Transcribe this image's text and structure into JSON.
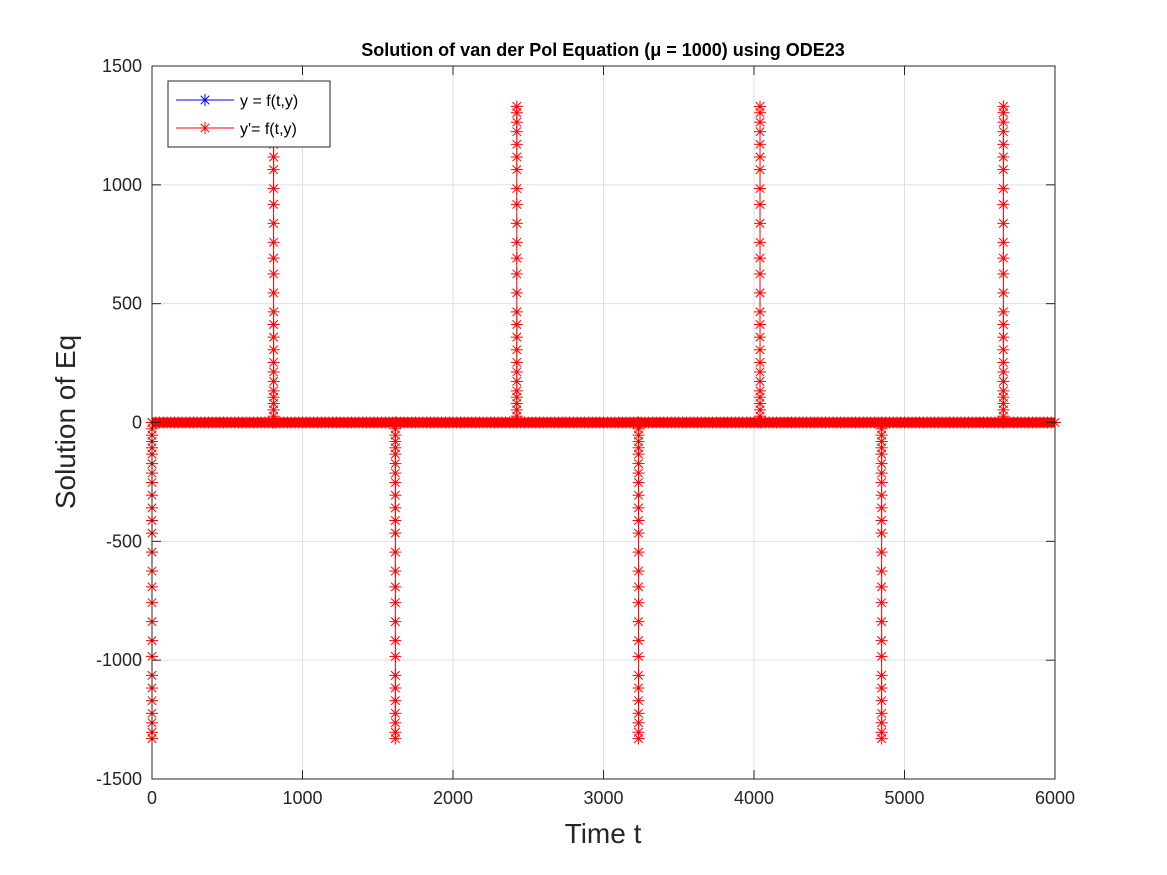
{
  "chart_data": {
    "type": "line",
    "title": "Solution of van der Pol Equation (μ = 1000) using ODE23",
    "xlabel": "Time t",
    "ylabel": "Solution of Eq",
    "xlim": [
      0,
      6000
    ],
    "ylim": [
      -1500,
      1500
    ],
    "xticks": [
      0,
      1000,
      2000,
      3000,
      4000,
      5000,
      6000
    ],
    "yticks": [
      -1500,
      -1000,
      -500,
      0,
      500,
      1000,
      1500
    ],
    "grid": true,
    "legend_location": "top-left",
    "marker": "asterisk",
    "series": [
      {
        "name": "y = f(t,y)",
        "color": "#0000ff",
        "description": "oscillates between about -2 and 2; hidden under red series at this scale"
      },
      {
        "name": "y'= f(t,y)",
        "color": "#ff0000",
        "baseline": 0,
        "spikes": [
          {
            "t": 0,
            "peak": -1330
          },
          {
            "t": 808,
            "peak": 1330
          },
          {
            "t": 1617,
            "peak": -1330
          },
          {
            "t": 2424,
            "peak": 1330
          },
          {
            "t": 3233,
            "peak": -1330
          },
          {
            "t": 4040,
            "peak": 1330
          },
          {
            "t": 4848,
            "peak": -1330
          },
          {
            "t": 5657,
            "peak": 1330
          }
        ]
      }
    ]
  }
}
